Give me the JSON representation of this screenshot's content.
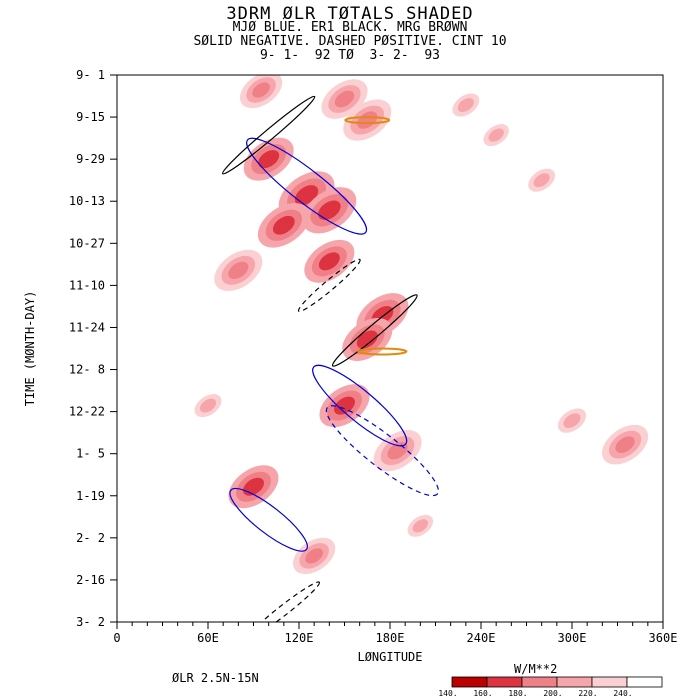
{
  "header": {
    "title": "3DRM ØLR TØTALS SHADED",
    "line2": "MJØ BLUE. ER1 BLACK. MRG BRØWN",
    "line3": "SØLID NEGATIVE. DASHED PØSITIVE. CINT 10",
    "line4": "9- 1-  92 TØ  3- 2-  93"
  },
  "footer": {
    "region": "ØLR 2.5N-15N",
    "units": "W/M**2"
  },
  "colors": {
    "mjo": "#0000dd",
    "er1": "#000000",
    "mrg": "#e08a10",
    "shade": [
      "#bb0000",
      "#dd3340",
      "#f08088",
      "#f6a5ab",
      "#fbd0d3",
      "#ffffff"
    ]
  },
  "chart_data": {
    "type": "heatmap",
    "xlabel": "LØNGITUDE",
    "ylabel": "TIME (MØNTH-DAY)",
    "xlim": [
      0,
      360
    ],
    "ylim_days": [
      0,
      182
    ],
    "xticks": [
      "0",
      "60E",
      "120E",
      "180E",
      "240E",
      "300E",
      "360E"
    ],
    "yticks": [
      "9- 1",
      "9-15",
      "9-29",
      "10-13",
      "10-27",
      "11-10",
      "11-24",
      "12- 8",
      "12-22",
      "1- 5",
      "1-19",
      "2- 2",
      "2-16",
      "3- 2"
    ],
    "colorbar_levels": [
      "140.",
      "160.",
      "180.",
      "200.",
      "220.",
      "240."
    ],
    "blobs": [
      {
        "lon": 95,
        "day": 5,
        "v": 195
      },
      {
        "lon": 150,
        "day": 8,
        "v": 185
      },
      {
        "lon": 165,
        "day": 15,
        "v": 180
      },
      {
        "lon": 230,
        "day": 10,
        "v": 205
      },
      {
        "lon": 250,
        "day": 20,
        "v": 210
      },
      {
        "lon": 100,
        "day": 28,
        "v": 175
      },
      {
        "lon": 125,
        "day": 40,
        "v": 160
      },
      {
        "lon": 140,
        "day": 45,
        "v": 165
      },
      {
        "lon": 110,
        "day": 50,
        "v": 170
      },
      {
        "lon": 140,
        "day": 62,
        "v": 175
      },
      {
        "lon": 80,
        "day": 65,
        "v": 180
      },
      {
        "lon": 175,
        "day": 80,
        "v": 170
      },
      {
        "lon": 165,
        "day": 88,
        "v": 175
      },
      {
        "lon": 150,
        "day": 110,
        "v": 175
      },
      {
        "lon": 185,
        "day": 125,
        "v": 180
      },
      {
        "lon": 90,
        "day": 137,
        "v": 175
      },
      {
        "lon": 130,
        "day": 160,
        "v": 195
      },
      {
        "lon": 300,
        "day": 115,
        "v": 200
      },
      {
        "lon": 335,
        "day": 123,
        "v": 185
      },
      {
        "lon": 280,
        "day": 35,
        "v": 205
      },
      {
        "lon": 60,
        "day": 110,
        "v": 205
      },
      {
        "lon": 200,
        "day": 150,
        "v": 210
      }
    ],
    "contours": [
      {
        "kind": "mjo",
        "dash": false,
        "lon": 160,
        "day": 110,
        "rx": 60,
        "ry": 15,
        "rot": 40
      },
      {
        "kind": "mjo",
        "dash": false,
        "lon": 125,
        "day": 37,
        "rx": 75,
        "ry": 16,
        "rot": 38
      },
      {
        "kind": "mjo",
        "dash": true,
        "lon": 175,
        "day": 125,
        "rx": 70,
        "ry": 16,
        "rot": 38
      },
      {
        "kind": "mjo",
        "dash": false,
        "lon": 100,
        "day": 148,
        "rx": 48,
        "ry": 13,
        "rot": 38
      },
      {
        "kind": "er1",
        "dash": false,
        "lon": 100,
        "day": 20,
        "rx": 60,
        "ry": 5,
        "rot": -40
      },
      {
        "kind": "er1",
        "dash": false,
        "lon": 170,
        "day": 85,
        "rx": 55,
        "ry": 6,
        "rot": -40
      },
      {
        "kind": "er1",
        "dash": true,
        "lon": 140,
        "day": 70,
        "rx": 40,
        "ry": 5,
        "rot": -40
      },
      {
        "kind": "er1",
        "dash": true,
        "lon": 110,
        "day": 178,
        "rx": 45,
        "ry": 5,
        "rot": -38
      },
      {
        "kind": "mrg",
        "dash": false,
        "lon": 165,
        "day": 15,
        "rx": 22,
        "ry": 3,
        "rot": 0
      },
      {
        "kind": "mrg",
        "dash": false,
        "lon": 175,
        "day": 92,
        "rx": 24,
        "ry": 3,
        "rot": 0
      }
    ]
  }
}
